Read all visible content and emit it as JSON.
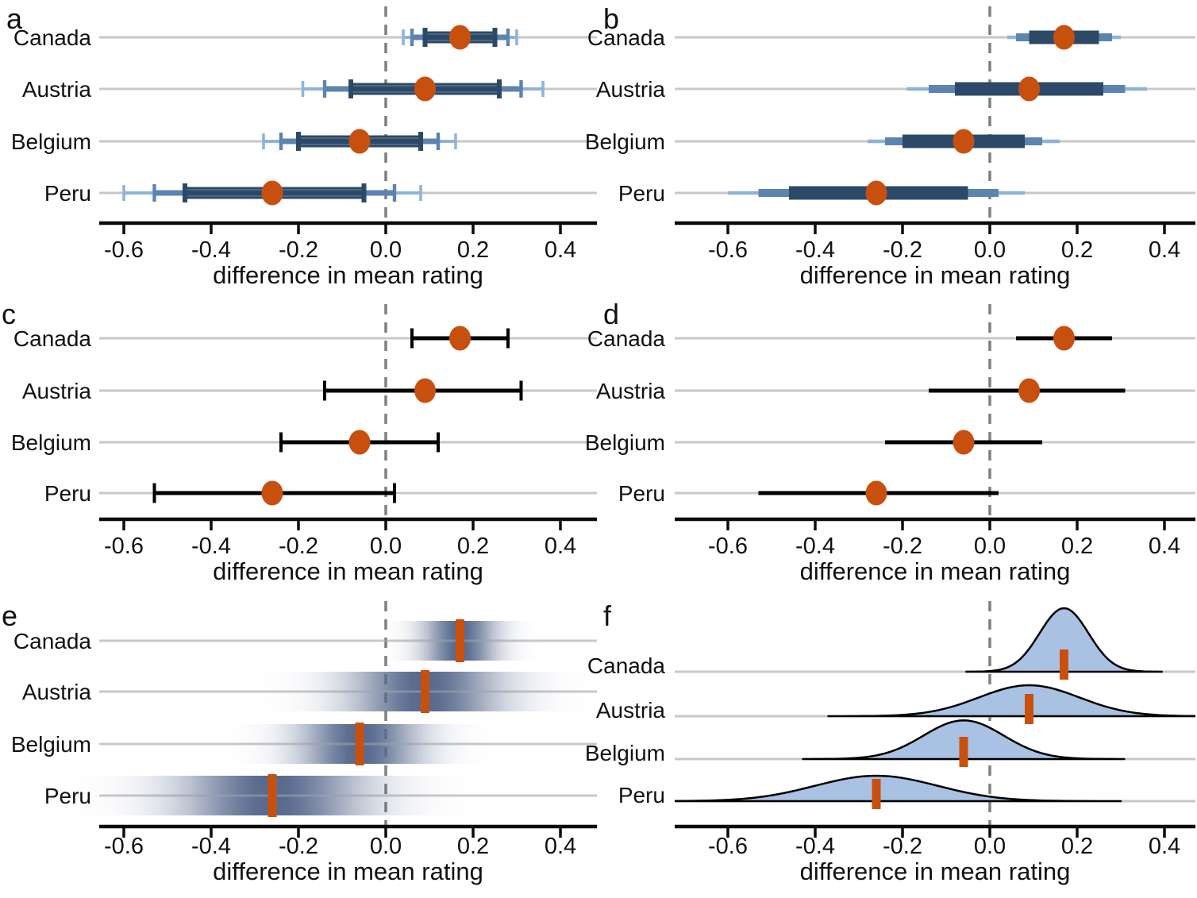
{
  "figure": {
    "axis_label": "difference in mean rating",
    "categories": [
      "Canada",
      "Austria",
      "Belgium",
      "Peru"
    ],
    "tick_labels": [
      "-0.6",
      "-0.4",
      "-0.2",
      "0.0",
      "0.2",
      "0.4"
    ],
    "tick_values": [
      -0.6,
      -0.4,
      -0.2,
      0.0,
      0.2,
      0.4
    ],
    "colors": {
      "point_orange": "#c8500f",
      "inner_navy": "#2c4a68",
      "mid_blue": "#5d84af",
      "light_blue": "#8fb3da",
      "density_fill": "#a9c2e3",
      "density_stroke": "#000000",
      "gradient_base": "#56688c",
      "gridline": "#c8c8c8",
      "zero_dash": "#7f7f7f",
      "axis": "#0a0a0a",
      "text": "#111111"
    }
  },
  "chart_data": [
    {
      "panel": "a",
      "type": "scatter",
      "encoding": "graded error bars with caps (66/95/99% intervals) + mean point",
      "categories": [
        "Canada",
        "Austria",
        "Belgium",
        "Peru"
      ],
      "means": [
        0.17,
        0.09,
        -0.06,
        -0.26
      ],
      "interval_66": [
        [
          0.09,
          0.25
        ],
        [
          -0.08,
          0.26
        ],
        [
          -0.2,
          0.08
        ],
        [
          -0.46,
          -0.05
        ]
      ],
      "interval_95": [
        [
          0.06,
          0.28
        ],
        [
          -0.14,
          0.31
        ],
        [
          -0.24,
          0.12
        ],
        [
          -0.53,
          0.02
        ]
      ],
      "interval_99": [
        [
          0.04,
          0.3
        ],
        [
          -0.19,
          0.36
        ],
        [
          -0.28,
          0.16
        ],
        [
          -0.6,
          0.08
        ]
      ],
      "xlabel": "difference in mean rating",
      "xticks": [
        -0.6,
        -0.4,
        -0.2,
        0.0,
        0.2,
        0.4
      ],
      "xlim": [
        -0.72,
        0.47
      ]
    },
    {
      "panel": "b",
      "type": "scatter",
      "encoding": "graded interval bars, thickness encodes interval level (no caps) + mean point",
      "categories": [
        "Canada",
        "Austria",
        "Belgium",
        "Peru"
      ],
      "means": [
        0.17,
        0.09,
        -0.06,
        -0.26
      ],
      "interval_66": [
        [
          0.09,
          0.25
        ],
        [
          -0.08,
          0.26
        ],
        [
          -0.2,
          0.08
        ],
        [
          -0.46,
          -0.05
        ]
      ],
      "interval_95": [
        [
          0.06,
          0.28
        ],
        [
          -0.14,
          0.31
        ],
        [
          -0.24,
          0.12
        ],
        [
          -0.53,
          0.02
        ]
      ],
      "interval_99": [
        [
          0.04,
          0.3
        ],
        [
          -0.19,
          0.36
        ],
        [
          -0.28,
          0.16
        ],
        [
          -0.6,
          0.08
        ]
      ],
      "xlabel": "difference in mean rating",
      "xticks": [
        -0.6,
        -0.4,
        -0.2,
        0.0,
        0.2,
        0.4
      ],
      "xlim": [
        -0.72,
        0.47
      ]
    },
    {
      "panel": "c",
      "type": "scatter",
      "encoding": "single 95% error bar with caps + mean point",
      "categories": [
        "Canada",
        "Austria",
        "Belgium",
        "Peru"
      ],
      "means": [
        0.17,
        0.09,
        -0.06,
        -0.26
      ],
      "interval_95": [
        [
          0.06,
          0.28
        ],
        [
          -0.14,
          0.31
        ],
        [
          -0.24,
          0.12
        ],
        [
          -0.53,
          0.02
        ]
      ],
      "xlabel": "difference in mean rating",
      "xticks": [
        -0.6,
        -0.4,
        -0.2,
        0.0,
        0.2,
        0.4
      ],
      "xlim": [
        -0.72,
        0.47
      ]
    },
    {
      "panel": "d",
      "type": "scatter",
      "encoding": "single 95% interval line without caps + mean point",
      "categories": [
        "Canada",
        "Austria",
        "Belgium",
        "Peru"
      ],
      "means": [
        0.17,
        0.09,
        -0.06,
        -0.26
      ],
      "interval_95": [
        [
          0.06,
          0.28
        ],
        [
          -0.14,
          0.31
        ],
        [
          -0.24,
          0.12
        ],
        [
          -0.53,
          0.02
        ]
      ],
      "xlabel": "difference in mean rating",
      "xticks": [
        -0.6,
        -0.4,
        -0.2,
        0.0,
        0.2,
        0.4
      ],
      "xlim": [
        -0.72,
        0.47
      ]
    },
    {
      "panel": "e",
      "type": "area",
      "encoding": "gradient (fade) strip, darkness encodes probability density + mean tick",
      "categories": [
        "Canada",
        "Austria",
        "Belgium",
        "Peru"
      ],
      "means": [
        0.17,
        0.09,
        -0.06,
        -0.26
      ],
      "sd": [
        0.056,
        0.115,
        0.092,
        0.14
      ],
      "xlabel": "difference in mean rating",
      "xticks": [
        -0.6,
        -0.4,
        -0.2,
        0.0,
        0.2,
        0.4
      ],
      "xlim": [
        -0.72,
        0.47
      ]
    },
    {
      "panel": "f",
      "type": "area",
      "encoding": "density ridgeline (filled normal curves) + mean tick",
      "categories": [
        "Canada",
        "Austria",
        "Belgium",
        "Peru"
      ],
      "means": [
        0.17,
        0.09,
        -0.06,
        -0.26
      ],
      "sd": [
        0.056,
        0.115,
        0.092,
        0.14
      ],
      "xlabel": "difference in mean rating",
      "xticks": [
        -0.6,
        -0.4,
        -0.2,
        0.0,
        0.2,
        0.4
      ],
      "xlim": [
        -0.72,
        0.47
      ]
    }
  ]
}
